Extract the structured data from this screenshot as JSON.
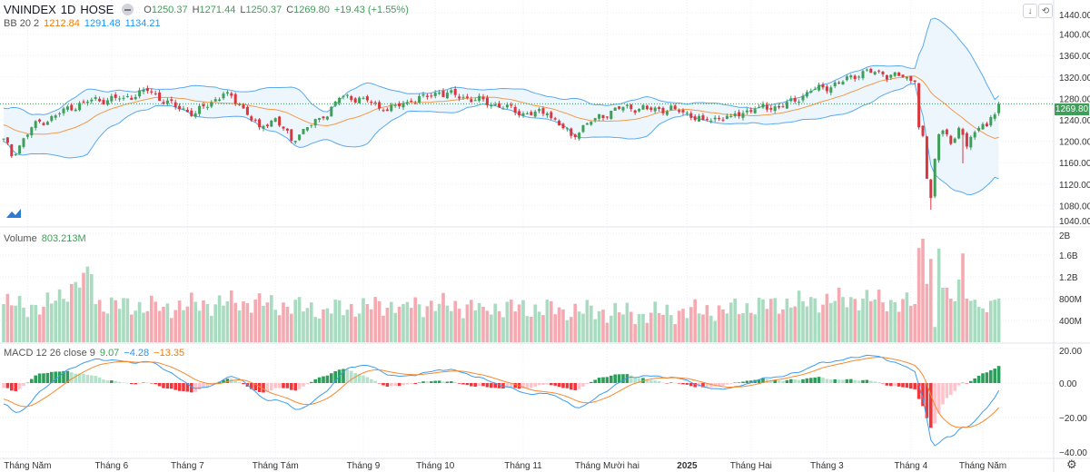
{
  "header": {
    "symbol": "VNINDEX",
    "interval": "1D",
    "exchange": "HOSE",
    "open_label": "O",
    "open": "1250.37",
    "high_label": "H",
    "high": "1271.44",
    "low_label": "L",
    "low": "1250.37",
    "close_label": "C",
    "close": "1269.80",
    "change": "+19.43 (+1.55%)"
  },
  "bb_legend": {
    "name": "BB 20 2",
    "basis": "1212.84",
    "upper": "1291.48",
    "lower": "1134.21"
  },
  "volume_legend": {
    "name": "Volume",
    "value": "803.213M"
  },
  "macd_legend": {
    "name": "MACD 12 26 close 9",
    "hist": "9.07",
    "macd": "−4.28",
    "signal": "−13.35"
  },
  "last_price_tag": "1269.80",
  "toolbar": {
    "scroll_icon": "↓",
    "reset_icon": "⟲",
    "settings_icon": "⚙"
  },
  "colors": {
    "up": "#3f9e5a",
    "down": "#d9363e",
    "vol_up": "#a8dbbf",
    "vol_down": "#f5a9b0",
    "bb_band": "#5aa9ee",
    "bb_fill": "#eef6fd",
    "bb_basis": "#f39a4a",
    "macd_line": "#3d9df0",
    "signal_line": "#f5892f",
    "hist_up_strong": "#2e9d5c",
    "hist_up_weak": "#b5e2cb",
    "hist_down_strong": "#f2353b",
    "hist_down_weak": "#fdc5cb"
  },
  "chart_data": {
    "type": "candlestick",
    "symbol": "VNINDEX",
    "bar_count": 250,
    "price_axis": {
      "ticks": [
        "1440.00",
        "1400.00",
        "1360.00",
        "1320.00",
        "1280.00",
        "1240.00",
        "1200.00",
        "1160.00",
        "1120.00",
        "1080.00",
        "1040.00"
      ],
      "range": [
        1040,
        1440
      ]
    },
    "volume_axis": {
      "ticks": [
        {
          "label": "2B",
          "value": 2000
        },
        {
          "label": "1.6B",
          "value": 1600
        },
        {
          "label": "1.2B",
          "value": 1200
        },
        {
          "label": "800M",
          "value": 800
        },
        {
          "label": "400M",
          "value": 400
        }
      ],
      "unit": "M"
    },
    "macd_axis": {
      "ticks": [
        {
          "label": "20.00",
          "value": 20
        },
        {
          "label": "0.00",
          "value": 0
        },
        {
          "label": "−20.00",
          "value": -20
        },
        {
          "label": "−40.00",
          "value": -40
        }
      ]
    },
    "time_ticks": [
      {
        "label": "Tháng Năm",
        "bar": 6
      },
      {
        "label": "Tháng 6",
        "bar": 27
      },
      {
        "label": "Tháng 7",
        "bar": 46
      },
      {
        "label": "Tháng Tám",
        "bar": 68
      },
      {
        "label": "Tháng 9",
        "bar": 90
      },
      {
        "label": "Tháng 10",
        "bar": 108
      },
      {
        "label": "Tháng 11",
        "bar": 130
      },
      {
        "label": "Tháng Mười hai",
        "bar": 151
      },
      {
        "label": "2025",
        "bar": 171,
        "bold": true
      },
      {
        "label": "Tháng Hai",
        "bar": 187
      },
      {
        "label": "Tháng 3",
        "bar": 206
      },
      {
        "label": "Tháng 4",
        "bar": 227
      },
      {
        "label": "Tháng Năm",
        "bar": 245
      }
    ],
    "close_keypoints": [
      [
        -45,
        1250
      ],
      [
        -25,
        1265
      ],
      [
        -10,
        1235
      ],
      [
        0,
        1205
      ],
      [
        2,
        1172
      ],
      [
        7,
        1226
      ],
      [
        14,
        1252
      ],
      [
        20,
        1274
      ],
      [
        30,
        1281
      ],
      [
        36,
        1294
      ],
      [
        43,
        1264
      ],
      [
        48,
        1252
      ],
      [
        55,
        1289
      ],
      [
        59,
        1269
      ],
      [
        64,
        1226
      ],
      [
        68,
        1243
      ],
      [
        72,
        1201
      ],
      [
        75,
        1223
      ],
      [
        80,
        1243
      ],
      [
        84,
        1281
      ],
      [
        90,
        1281
      ],
      [
        95,
        1257
      ],
      [
        102,
        1274
      ],
      [
        109,
        1291
      ],
      [
        116,
        1281
      ],
      [
        123,
        1269
      ],
      [
        130,
        1252
      ],
      [
        136,
        1252
      ],
      [
        142,
        1210
      ],
      [
        148,
        1243
      ],
      [
        155,
        1264
      ],
      [
        161,
        1260
      ],
      [
        168,
        1260
      ],
      [
        175,
        1240
      ],
      [
        182,
        1247
      ],
      [
        189,
        1264
      ],
      [
        195,
        1264
      ],
      [
        202,
        1294
      ],
      [
        209,
        1308
      ],
      [
        215,
        1331
      ],
      [
        220,
        1325
      ],
      [
        225,
        1320
      ],
      [
        228,
        1311
      ],
      [
        229,
        1226
      ],
      [
        230,
        1210
      ],
      [
        231,
        1130
      ],
      [
        232,
        1094
      ],
      [
        233,
        1167
      ],
      [
        234,
        1213
      ],
      [
        235,
        1220
      ],
      [
        236,
        1213
      ],
      [
        237,
        1195
      ],
      [
        238,
        1205
      ],
      [
        239,
        1225
      ],
      [
        240,
        1212
      ],
      [
        241,
        1190
      ],
      [
        242,
        1208
      ],
      [
        243,
        1217
      ],
      [
        244,
        1225
      ],
      [
        245,
        1232
      ],
      [
        246,
        1228
      ],
      [
        247,
        1245
      ],
      [
        248,
        1250
      ],
      [
        249,
        1269.8
      ]
    ],
    "volume_keypoints_M": [
      [
        0,
        700
      ],
      [
        10,
        650
      ],
      [
        22,
        1250
      ],
      [
        23,
        700
      ],
      [
        40,
        650
      ],
      [
        60,
        750
      ],
      [
        80,
        600
      ],
      [
        100,
        700
      ],
      [
        120,
        650
      ],
      [
        140,
        600
      ],
      [
        160,
        520
      ],
      [
        180,
        600
      ],
      [
        200,
        750
      ],
      [
        215,
        800
      ],
      [
        228,
        700
      ],
      [
        229,
        1730
      ],
      [
        230,
        1900
      ],
      [
        231,
        1070
      ],
      [
        232,
        1530
      ],
      [
        233,
        280
      ],
      [
        234,
        1720
      ],
      [
        235,
        1000
      ],
      [
        236,
        1000
      ],
      [
        237,
        800
      ],
      [
        238,
        750
      ],
      [
        239,
        1150
      ],
      [
        240,
        1630
      ],
      [
        241,
        800
      ],
      [
        242,
        760
      ],
      [
        243,
        780
      ],
      [
        244,
        650
      ],
      [
        245,
        620
      ],
      [
        246,
        550
      ],
      [
        247,
        760
      ],
      [
        248,
        780
      ],
      [
        249,
        803
      ]
    ]
  }
}
